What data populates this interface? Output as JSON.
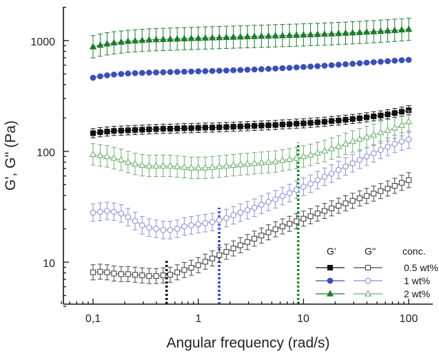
{
  "chart_data": {
    "type": "scatter",
    "title": "",
    "xlabel": "Angular frequency (rad/s)",
    "ylabel": "G', G'' (Pa)",
    "xscale": "log",
    "yscale": "log",
    "xlim": [
      0.05,
      200
    ],
    "ylim": [
      4,
      2000
    ],
    "x_ticks": [
      0.1,
      1,
      10,
      100
    ],
    "x_tick_labels": [
      "0,1",
      "1",
      "10",
      "100"
    ],
    "y_ticks": [
      10,
      100,
      1000
    ],
    "y_tick_labels": [
      "10",
      "100",
      "1000"
    ],
    "grid": false,
    "legend": {
      "position": "bottom-right",
      "headers": [
        "G'",
        "G''",
        "conc."
      ],
      "rows": [
        "0.5 wt%",
        "1 wt%",
        "2 wt%"
      ]
    },
    "colors": {
      "0.5 wt%": "#111111",
      "1 wt%": "#3a50b4",
      "1 wt% light": "#8a8ed8",
      "2 wt%": "#1e7a2e",
      "2 wt% light": "#6fae6f"
    },
    "x": [
      0.1,
      0.117,
      0.136,
      0.158,
      0.185,
      0.215,
      0.251,
      0.293,
      0.341,
      0.398,
      0.464,
      0.541,
      0.631,
      0.736,
      0.858,
      1.0,
      1.166,
      1.36,
      1.585,
      1.848,
      2.154,
      2.512,
      2.929,
      3.415,
      3.981,
      4.642,
      5.412,
      6.31,
      7.356,
      8.577,
      10.0,
      11.66,
      13.59,
      15.85,
      18.48,
      21.54,
      25.12,
      29.29,
      34.15,
      39.81,
      46.42,
      54.12,
      63.1,
      73.56,
      85.77,
      100.0
    ],
    "series": [
      {
        "name": "G' 0.5 wt%",
        "kind": "filled-square",
        "color": "#111111",
        "values": [
          146,
          149,
          151,
          153,
          154,
          155,
          156,
          157,
          158,
          159,
          160,
          160,
          161,
          162,
          162,
          163,
          164,
          164,
          165,
          166,
          167,
          168,
          169,
          170,
          171,
          172,
          173,
          175,
          176,
          178,
          179,
          181,
          183,
          185,
          188,
          190,
          193,
          196,
          199,
          203,
          207,
          211,
          216,
          222,
          228,
          235
        ],
        "error": 0.1
      },
      {
        "name": "G' 1 wt%",
        "kind": "filled-circle",
        "color": "#3a50b4",
        "values": [
          462,
          476,
          486,
          494,
          500,
          505,
          508,
          511,
          514,
          516,
          518,
          520,
          522,
          524,
          526,
          528,
          530,
          532,
          535,
          537,
          540,
          543,
          546,
          549,
          552,
          556,
          560,
          564,
          568,
          573,
          578,
          583,
          588,
          594,
          600,
          606,
          612,
          618,
          625,
          632,
          638,
          645,
          652,
          659,
          665,
          670
        ],
        "error": 0.03
      },
      {
        "name": "G' 2 wt%",
        "kind": "filled-triangle",
        "color": "#1e7a2e",
        "values": [
          880,
          910,
          935,
          955,
          970,
          985,
          995,
          1005,
          1015,
          1020,
          1025,
          1030,
          1035,
          1040,
          1045,
          1050,
          1055,
          1060,
          1065,
          1070,
          1075,
          1080,
          1085,
          1090,
          1095,
          1100,
          1105,
          1110,
          1115,
          1120,
          1125,
          1132,
          1138,
          1145,
          1152,
          1160,
          1168,
          1176,
          1185,
          1195,
          1205,
          1215,
          1225,
          1238,
          1250,
          1265
        ],
        "error": 0.26
      },
      {
        "name": "G'' 0.5 wt%",
        "kind": "open-square",
        "color": "#444444",
        "values": [
          8.1,
          8.2,
          8.1,
          7.9,
          7.8,
          7.8,
          7.7,
          7.6,
          7.5,
          7.5,
          7.6,
          7.7,
          8.1,
          8.5,
          8.9,
          9.4,
          10.1,
          10.8,
          11.6,
          12.4,
          13.3,
          14.2,
          15.2,
          16.3,
          17.4,
          18.6,
          19.8,
          21.0,
          22.2,
          23.4,
          24.7,
          26.0,
          27.5,
          29.0,
          30.6,
          32.3,
          34.0,
          35.8,
          37.7,
          39.6,
          41.6,
          43.8,
          46.2,
          48.9,
          52.0,
          55.0
        ],
        "error": 0.17
      },
      {
        "name": "G'' 1 wt%",
        "kind": "open-circle",
        "color": "#8a8ed8",
        "values": [
          28,
          28.5,
          29,
          28.5,
          27.5,
          25.5,
          23.5,
          21.5,
          20.5,
          20,
          19.5,
          19.5,
          20,
          21,
          21.5,
          22,
          22.5,
          23,
          24,
          25,
          26.5,
          28,
          29.5,
          31,
          33,
          35,
          37,
          39.5,
          42,
          45,
          48,
          51,
          55,
          59,
          63,
          68,
          73,
          78,
          84,
          90,
          96,
          103,
          110,
          117,
          123,
          128
        ],
        "error": 0.2
      },
      {
        "name": "G'' 2 wt%",
        "kind": "open-triangle",
        "color": "#6fae6f",
        "values": [
          94,
          92,
          90,
          87,
          84,
          80,
          77,
          75,
          74,
          74,
          74,
          74,
          73,
          72,
          71,
          71,
          71,
          72,
          73,
          74,
          75,
          76,
          77,
          78,
          79,
          80,
          81,
          83,
          85,
          87,
          90,
          93,
          97,
          101,
          106,
          111,
          117,
          123,
          129,
          135,
          141,
          148,
          155,
          163,
          172,
          186
        ],
        "error": 0.25
      }
    ],
    "crossover_lines": [
      {
        "x": 0.5,
        "color": "#111111",
        "y_top": 10.5
      },
      {
        "x": 1.58,
        "color": "#2540c8",
        "y_top": 31
      },
      {
        "x": 8.9,
        "color": "#1a8a2e",
        "y_top": 120
      }
    ]
  }
}
